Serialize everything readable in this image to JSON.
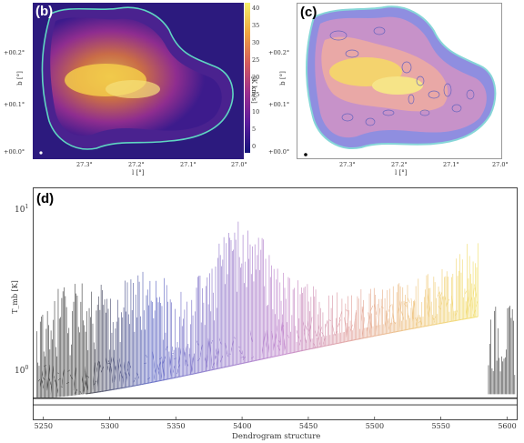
{
  "panel_b": {
    "letter": "(b)",
    "yticks": [
      "+00.2°",
      "+00.1°",
      "+00.0°"
    ],
    "xticks": [
      "27.3°",
      "27.2°",
      "27.1°",
      "27.0°"
    ],
    "xlabel": "l [°]",
    "ylabel": "b [°]",
    "colorbar_label": "[K km/s]",
    "colorbar_ticks": [
      "40",
      "35",
      "30",
      "25",
      "20",
      "15",
      "10",
      "5",
      "0"
    ]
  },
  "panel_c": {
    "letter": "(c)",
    "yticks": [
      "+00.2°",
      "+00.1°",
      "+00.0°"
    ],
    "xticks": [
      "27.3°",
      "27.2°",
      "27.1°",
      "27.0°"
    ],
    "xlabel": "l [°]",
    "ylabel": "b [°]"
  },
  "panel_d": {
    "letter": "(d)",
    "ytick_top": "10",
    "ytick_top_exp": "1",
    "ytick_bottom": "10",
    "ytick_bottom_exp": "0",
    "ylabel": "T_mb [K]",
    "xlabel": "Dendrogram structure",
    "xticks": [
      "5250",
      "5300",
      "5350",
      "5400",
      "5450",
      "5500",
      "5550",
      "5600"
    ]
  },
  "chart_data": {
    "type": "line",
    "xlabel": "Dendrogram structure",
    "ylabel": "T_mb [K]",
    "xlim": [
      5242,
      5608
    ],
    "ylim": [
      0.5,
      13
    ],
    "log_y": true,
    "x": [
      5245,
      5260,
      5280,
      5300,
      5330,
      5360,
      5400,
      5430,
      5460,
      5500,
      5530,
      5560,
      5578
    ],
    "series": [
      {
        "values": [
          2.6,
          3.2,
          3.8,
          3.5,
          4.2,
          3.0,
          8.5,
          4.5,
          3.0,
          3.2,
          3.6,
          4.5,
          8.0
        ]
      }
    ],
    "colors": [
      "#555555",
      "#6b74c8",
      "#9a86d0",
      "#c58ed0",
      "#e3a9a8",
      "#f0c98a",
      "#f3e27a"
    ]
  }
}
